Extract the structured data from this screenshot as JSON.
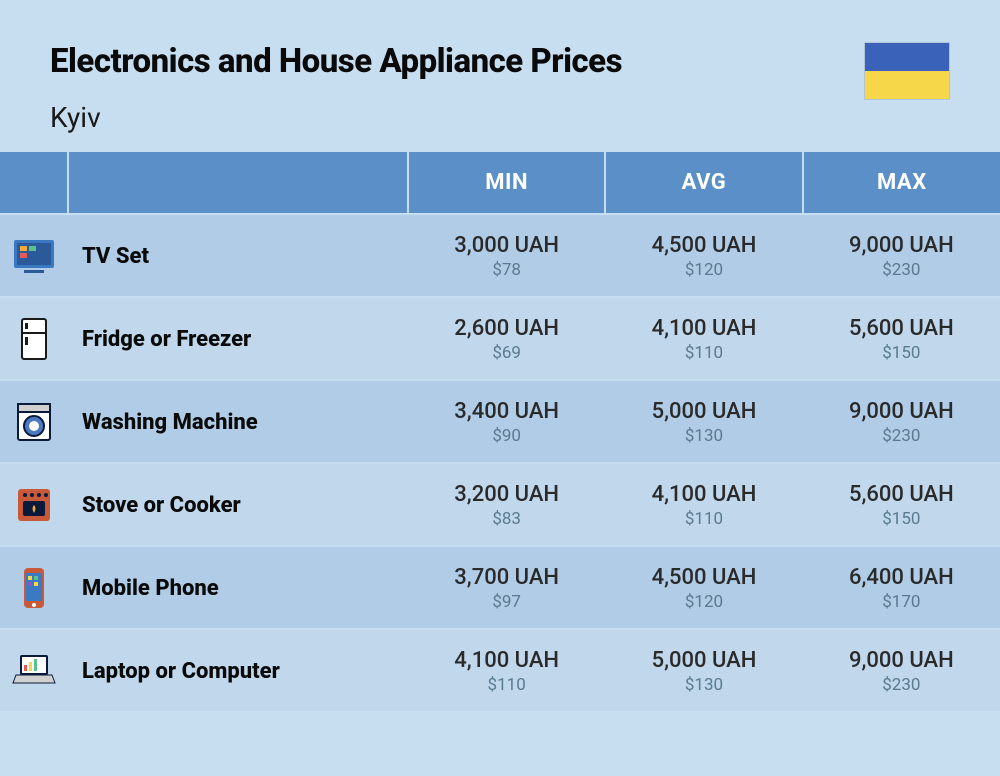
{
  "header": {
    "title": "Electronics and House Appliance Prices",
    "subtitle": "Kyiv"
  },
  "table": {
    "columns": [
      "MIN",
      "AVG",
      "MAX"
    ],
    "header_bg": "#5a8fc7",
    "header_fg": "#ffffff",
    "row_bg_odd": "#b0cce6",
    "row_bg_even": "#c0d7ec",
    "price_uah_color": "#2a2a2a",
    "price_usd_color": "#5a7a90",
    "rows": [
      {
        "icon": "tv",
        "label": "TV Set",
        "min": {
          "uah": "3,000 UAH",
          "usd": "$78"
        },
        "avg": {
          "uah": "4,500 UAH",
          "usd": "$120"
        },
        "max": {
          "uah": "9,000 UAH",
          "usd": "$230"
        }
      },
      {
        "icon": "fridge",
        "label": "Fridge or Freezer",
        "min": {
          "uah": "2,600 UAH",
          "usd": "$69"
        },
        "avg": {
          "uah": "4,100 UAH",
          "usd": "$110"
        },
        "max": {
          "uah": "5,600 UAH",
          "usd": "$150"
        }
      },
      {
        "icon": "washer",
        "label": "Washing Machine",
        "min": {
          "uah": "3,400 UAH",
          "usd": "$90"
        },
        "avg": {
          "uah": "5,000 UAH",
          "usd": "$130"
        },
        "max": {
          "uah": "9,000 UAH",
          "usd": "$230"
        }
      },
      {
        "icon": "stove",
        "label": "Stove or Cooker",
        "min": {
          "uah": "3,200 UAH",
          "usd": "$83"
        },
        "avg": {
          "uah": "4,100 UAH",
          "usd": "$110"
        },
        "max": {
          "uah": "5,600 UAH",
          "usd": "$150"
        }
      },
      {
        "icon": "phone",
        "label": "Mobile Phone",
        "min": {
          "uah": "3,700 UAH",
          "usd": "$97"
        },
        "avg": {
          "uah": "4,500 UAH",
          "usd": "$120"
        },
        "max": {
          "uah": "6,400 UAH",
          "usd": "$170"
        }
      },
      {
        "icon": "laptop",
        "label": "Laptop or Computer",
        "min": {
          "uah": "4,100 UAH",
          "usd": "$110"
        },
        "avg": {
          "uah": "5,000 UAH",
          "usd": "$130"
        },
        "max": {
          "uah": "9,000 UAH",
          "usd": "$230"
        }
      }
    ]
  },
  "flag": {
    "top": "#3a62b8",
    "bottom": "#f7d74a"
  },
  "icons": {
    "tv_colors": {
      "body": "#3a78c2",
      "screen": "#2a5a9a",
      "accent1": "#f7a93a",
      "accent2": "#5ac28a",
      "accent3": "#e85a5a"
    },
    "fridge_colors": {
      "outline": "#1a1a1a",
      "fill": "#ffffff"
    },
    "washer_colors": {
      "body": "#ffffff",
      "outline": "#0a1a3a",
      "drum": "#4a7ac2",
      "panel": "#d0d0d0"
    },
    "stove_colors": {
      "body": "#c85a3a",
      "knob": "#0a1a3a",
      "flame": "#f7a93a"
    },
    "phone_colors": {
      "body": "#c85a3a",
      "screen": "#3a7ac2",
      "app1": "#f7d74a",
      "app2": "#5ac28a",
      "app3": "#8a5ac2"
    },
    "laptop_colors": {
      "body": "#0a1a3a",
      "screen": "#ffffff",
      "bar1": "#e85a5a",
      "bar2": "#f7d74a",
      "bar3": "#5ac28a"
    }
  }
}
